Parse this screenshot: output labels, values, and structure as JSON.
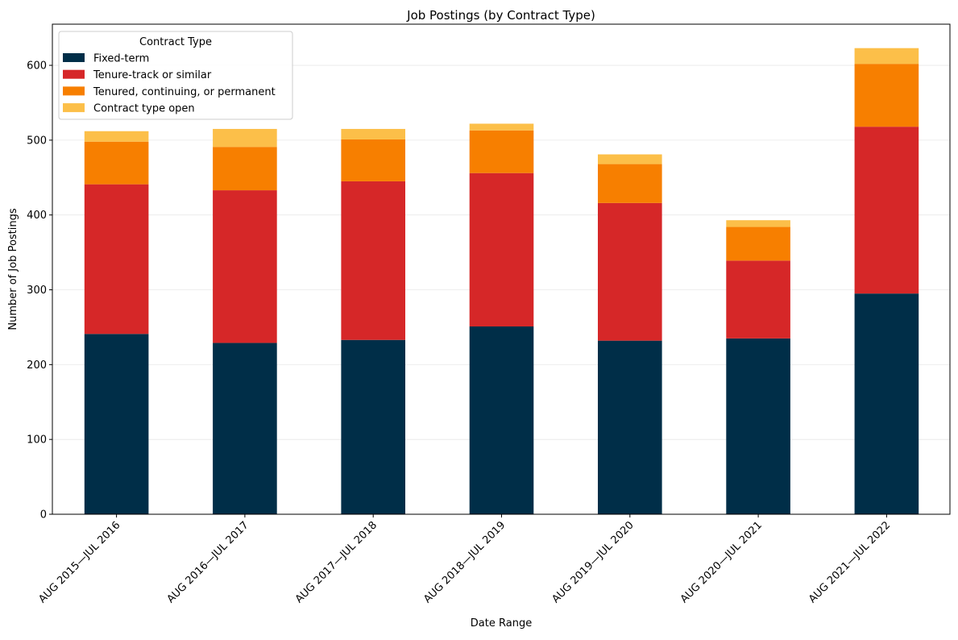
{
  "chart_data": {
    "type": "bar",
    "stacked": true,
    "title": "Job Postings (by Contract Type)",
    "xlabel": "Date Range",
    "ylabel": "Number of Job Postings",
    "ylim": [
      0,
      655
    ],
    "yticks": [
      0,
      100,
      200,
      300,
      400,
      500,
      600
    ],
    "grid": "horizontal",
    "categories": [
      "AUG 2015—JUL 2016",
      "AUG 2016—JUL 2017",
      "AUG 2017—JUL 2018",
      "AUG 2018—JUL 2019",
      "AUG 2019—JUL 2020",
      "AUG 2020—JUL 2021",
      "AUG 2021—JUL 2022"
    ],
    "legend": {
      "title": "Contract Type",
      "placement": "top-left"
    },
    "series": [
      {
        "name": "Fixed-term",
        "color": "#002e48",
        "values": [
          241,
          229,
          233,
          251,
          232,
          235,
          295
        ]
      },
      {
        "name": "Tenure-track or similar",
        "color": "#d62728",
        "values": [
          200,
          204,
          212,
          205,
          184,
          104,
          223
        ]
      },
      {
        "name": "Tenured, continuing, or permanent",
        "color": "#f77f00",
        "values": [
          57,
          58,
          56,
          57,
          52,
          45,
          84
        ]
      },
      {
        "name": "Contract type open",
        "color": "#fcbf49",
        "values": [
          14,
          24,
          14,
          9,
          13,
          9,
          21
        ]
      }
    ]
  }
}
